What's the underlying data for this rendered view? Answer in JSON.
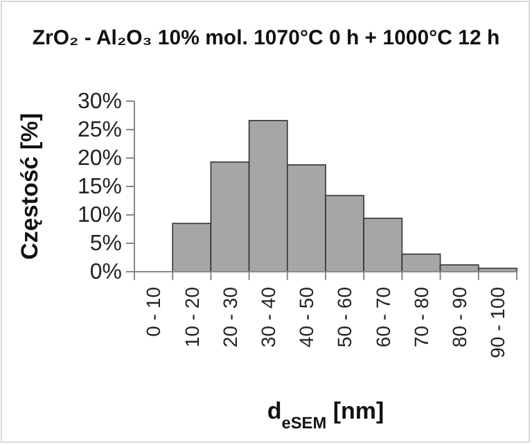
{
  "chart_data": {
    "type": "bar",
    "title": "ZrO₂ - Al₂O₃ 10% mol. 1070°C 0 h + 1000°C 12 h",
    "xlabel": "d$_{eSEM}$ [nm]",
    "ylabel": "Częstość [%]",
    "categories": [
      "0 - 10",
      "10 - 20",
      "20 - 30",
      "30 - 40",
      "40 - 50",
      "50 - 60",
      "60 - 70",
      "70 - 80",
      "80 - 90",
      "90 - 100"
    ],
    "values": [
      0,
      8.5,
      19.3,
      26.6,
      18.8,
      13.4,
      9.4,
      3.1,
      1.2,
      0.6
    ],
    "color": "#a6a6a6",
    "ylim": [
      0,
      30
    ],
    "yticks": [
      {
        "value": 0,
        "label": "0%"
      },
      {
        "value": 5,
        "label": "5%"
      },
      {
        "value": 10,
        "label": "10%"
      },
      {
        "value": 15,
        "label": "15%"
      },
      {
        "value": 20,
        "label": "20%"
      },
      {
        "value": 25,
        "label": "25%"
      },
      {
        "value": 30,
        "label": "30%"
      }
    ],
    "grid": false
  }
}
